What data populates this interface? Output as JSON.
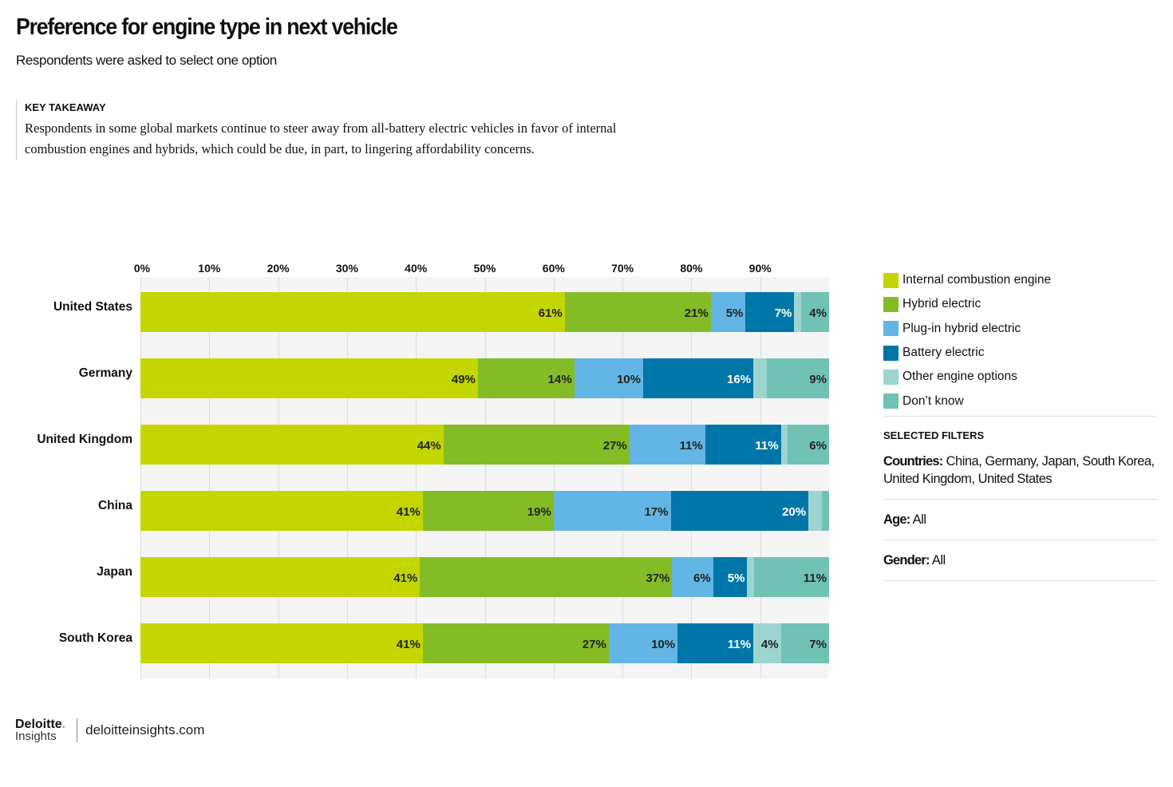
{
  "header": {
    "title": "Preference for engine type in next vehicle",
    "subtitle": "Respondents were asked to select one option"
  },
  "takeaway": {
    "heading": "KEY TAKEAWAY",
    "text": "Respondents in some global markets continue to steer away from all-battery electric vehicles in favor of internal combustion engines and hybrids, which could be due, in part, to lingering affordability concerns."
  },
  "chart_data": {
    "type": "bar",
    "orientation": "horizontal",
    "stacked": true,
    "xlim": [
      0,
      100
    ],
    "grid": true,
    "legend_position": "right",
    "ticks": [
      "0%",
      "10%",
      "20%",
      "30%",
      "40%",
      "50%",
      "60%",
      "70%",
      "80%",
      "90%"
    ],
    "categories": [
      "United States",
      "Germany",
      "United Kingdom",
      "China",
      "Japan",
      "South Korea"
    ],
    "series": [
      {
        "name": "Internal combustion engine",
        "color": "#c3d600",
        "values": [
          61,
          49,
          44,
          41,
          41,
          41
        ],
        "labels": [
          "61%",
          "49%",
          "44%",
          "41%",
          "41%",
          "41%"
        ]
      },
      {
        "name": "Hybrid electric",
        "color": "#84bc25",
        "values": [
          21,
          14,
          27,
          19,
          37,
          27
        ],
        "labels": [
          "21%",
          "14%",
          "27%",
          "19%",
          "37%",
          "27%"
        ]
      },
      {
        "name": "Plug-in hybrid electric",
        "color": "#62b5e5",
        "values": [
          5,
          10,
          11,
          17,
          6,
          10
        ],
        "labels": [
          "5%",
          "10%",
          "11%",
          "17%",
          "6%",
          "10%"
        ]
      },
      {
        "name": "Battery electric",
        "color": "#0076a8",
        "values": [
          7,
          16,
          11,
          20,
          5,
          11
        ],
        "labels": [
          "7%",
          "16%",
          "11%",
          "20%",
          "5%",
          "11%"
        ]
      },
      {
        "name": "Other engine options",
        "color": "#9dd4cf",
        "values": [
          1,
          2,
          1,
          2,
          1,
          4
        ],
        "labels": [
          null,
          null,
          null,
          null,
          null,
          "4%"
        ]
      },
      {
        "name": "Don’t know",
        "color": "#6fc2b4",
        "values": [
          4,
          9,
          6,
          1,
          11,
          7
        ],
        "labels": [
          "4%",
          "9%",
          "6%",
          null,
          "11%",
          "7%"
        ]
      }
    ]
  },
  "filters": {
    "heading": "SELECTED FILTERS",
    "countries_label": "Countries:",
    "countries": "China, Germany, Japan, South Korea, United Kingdom, United States",
    "age_label": "Age:",
    "age": "All",
    "gender_label": "Gender:",
    "gender": "All"
  },
  "footer": {
    "logo_top": "Deloitte",
    "logo_dot": ".",
    "logo_bottom": "Insights",
    "site": "deloitteinsights.com"
  }
}
